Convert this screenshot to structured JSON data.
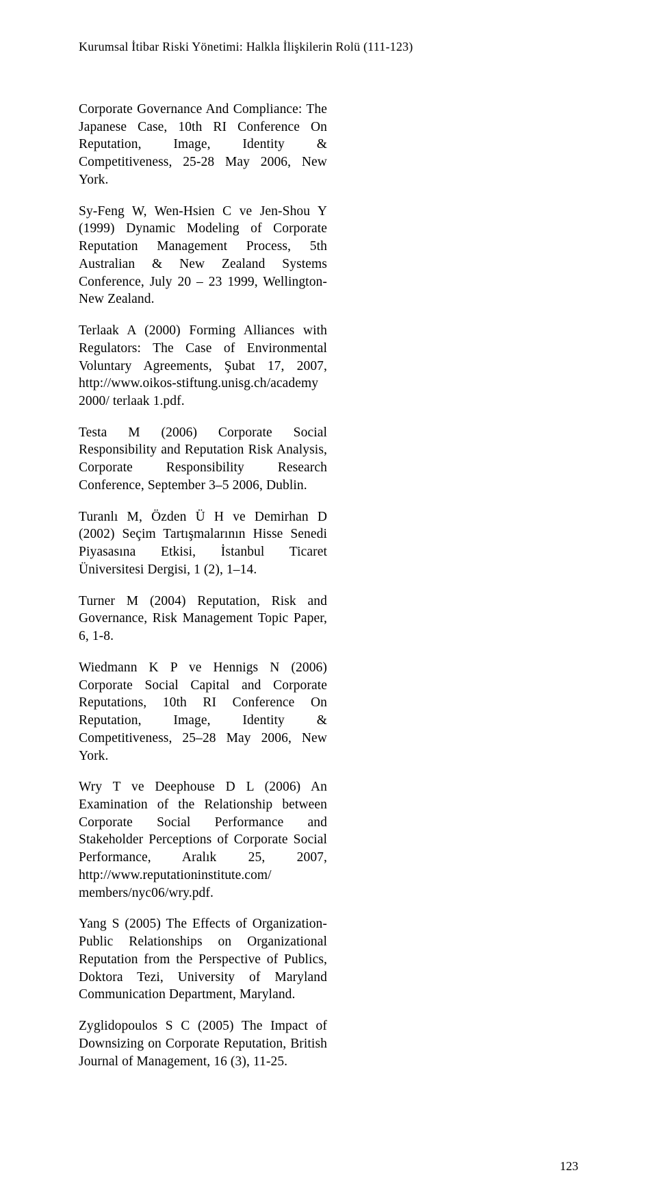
{
  "header": "Kurumsal İtibar Riski Yönetimi: Halkla İlişkilerin Rolü (111-123)",
  "references": [
    "Corporate Governance And Compliance: The Japanese Case, 10th RI Conference On Reputation, Image, Identity & Competitiveness, 25-28 May 2006, New York.",
    "Sy-Feng W, Wen-Hsien C ve Jen-Shou Y (1999) Dynamic Modeling of Corporate Reputation Management Process, 5th Australian & New Zealand Systems Conference, July 20 – 23 1999, Wellington-New Zealand.",
    "Terlaak A (2000) Forming Alliances with Regulators: The Case of Environmental Voluntary Agreements, Şubat 17, 2007, http://www.oikos-stiftung.unisg.ch/academy 2000/ terlaak 1.pdf.",
    "Testa M (2006) Corporate Social Responsibility and Reputation Risk Analysis, Corporate Responsibility Research Conference, September 3–5 2006, Dublin.",
    "Turanlı M, Özden Ü H ve Demirhan D (2002) Seçim Tartışmalarının Hisse Senedi Piyasasına Etkisi, İstanbul Ticaret Üniversitesi Dergisi, 1 (2), 1–14.",
    "Turner M (2004) Reputation, Risk and Governance, Risk Management Topic Paper, 6, 1-8.",
    "Wiedmann K P ve Hennigs N (2006) Corporate Social Capital and Corporate Reputations, 10th RI Conference On Reputation, Image, Identity & Competitiveness, 25–28 May 2006, New York.",
    "Wry T ve Deephouse D L (2006) An Examination of the Relationship between Corporate Social Performance and Stakeholder Perceptions of Corporate Social Performance, Aralık 25, 2007, http://www.reputationinstitute.com/ members/nyc06/wry.pdf.",
    "Yang S (2005) The Effects of Organization-Public Relationships on Organizational Reputation from the Perspective of Publics, Doktora Tezi, University of Maryland Communication Department, Maryland.",
    "Zyglidopoulos S C (2005) The Impact of Downsizing on Corporate Reputation, British Journal of Management, 16 (3), 11-25."
  ],
  "pageNumber": "123"
}
